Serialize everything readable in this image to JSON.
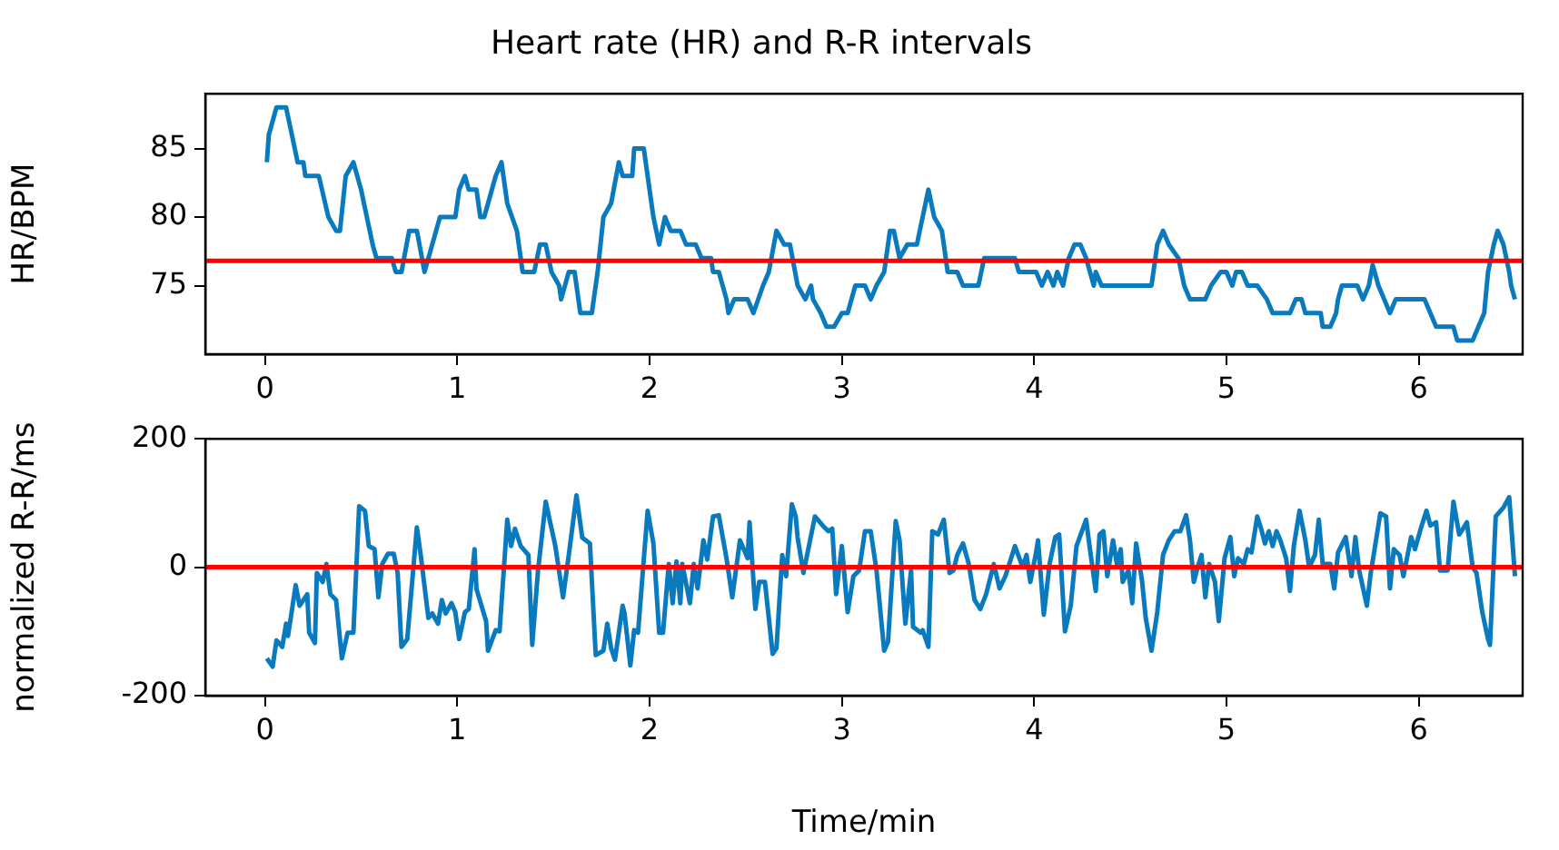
{
  "chart_data": [
    {
      "type": "line",
      "title": "Heart rate (HR) and R-R intervals",
      "ylabel": "HR/BPM",
      "xlim": [
        -0.31,
        6.54
      ],
      "xticks": [
        0,
        1,
        2,
        3,
        4,
        5,
        6
      ],
      "ylim": [
        70,
        89
      ],
      "yticks": [
        75,
        80,
        85
      ],
      "grid": false,
      "legend": false,
      "series": [
        {
          "color": "#0a7abf",
          "x": [
            0.01,
            0.02,
            0.06,
            0.11,
            0.155,
            0.17,
            0.2,
            0.21,
            0.28,
            0.33,
            0.37,
            0.39,
            0.42,
            0.46,
            0.5,
            0.56,
            0.58,
            0.66,
            0.68,
            0.71,
            0.75,
            0.79,
            0.83,
            0.91,
            0.99,
            1.01,
            1.04,
            1.06,
            1.1,
            1.12,
            1.14,
            1.16,
            1.2,
            1.23,
            1.26,
            1.31,
            1.34,
            1.4,
            1.43,
            1.46,
            1.49,
            1.53,
            1.54,
            1.58,
            1.61,
            1.64,
            1.7,
            1.73,
            1.76,
            1.8,
            1.84,
            1.86,
            1.91,
            1.92,
            1.97,
            2.0,
            2.02,
            2.05,
            2.08,
            2.11,
            2.16,
            2.19,
            2.24,
            2.27,
            2.32,
            2.33,
            2.36,
            2.4,
            2.41,
            2.44,
            2.51,
            2.54,
            2.59,
            2.62,
            2.66,
            2.7,
            2.73,
            2.77,
            2.81,
            2.84,
            2.85,
            2.89,
            2.92,
            2.96,
            3.0,
            3.03,
            3.07,
            3.12,
            3.15,
            3.18,
            3.22,
            3.25,
            3.27,
            3.3,
            3.34,
            3.39,
            3.42,
            3.45,
            3.48,
            3.52,
            3.55,
            3.6,
            3.63,
            3.71,
            3.74,
            3.9,
            3.92,
            4.01,
            4.04,
            4.07,
            4.1,
            4.12,
            4.15,
            4.18,
            4.21,
            4.24,
            4.27,
            4.31,
            4.32,
            4.35,
            4.61,
            4.64,
            4.67,
            4.7,
            4.75,
            4.78,
            4.81,
            4.89,
            4.92,
            4.97,
            5.0,
            5.03,
            5.05,
            5.08,
            5.11,
            5.16,
            5.21,
            5.24,
            5.33,
            5.36,
            5.39,
            5.41,
            5.49,
            5.5,
            5.54,
            5.57,
            5.58,
            5.6,
            5.68,
            5.71,
            5.74,
            5.76,
            5.79,
            5.82,
            5.85,
            5.88,
            6.03,
            6.06,
            6.09,
            6.18,
            6.2,
            6.28,
            6.31,
            6.34,
            6.36,
            6.39,
            6.41,
            6.44,
            6.47,
            6.48,
            6.5
          ],
          "values": [
            84,
            86,
            88,
            88,
            85,
            84,
            84,
            83,
            83,
            80,
            79,
            79,
            83,
            84,
            82,
            78,
            77,
            77,
            76,
            76,
            79,
            79,
            76,
            80,
            80,
            82,
            83,
            82,
            82,
            80,
            80,
            81,
            83,
            84,
            81,
            79,
            76,
            76,
            78,
            78,
            76,
            75,
            74,
            76,
            76,
            73,
            73,
            76,
            80,
            81,
            84,
            83,
            83,
            85,
            85,
            82,
            80,
            78,
            80,
            79,
            79,
            78,
            78,
            77,
            77,
            76,
            76,
            74,
            73,
            74,
            74,
            73,
            75,
            76,
            79,
            78,
            78,
            75,
            74,
            75,
            74,
            73,
            72,
            72,
            73,
            73,
            75,
            75,
            74,
            75,
            76,
            79,
            79,
            77,
            78,
            78,
            80,
            82,
            80,
            79,
            76,
            76,
            75,
            75,
            77,
            77,
            76,
            76,
            75,
            76,
            75,
            76,
            75,
            77,
            78,
            78,
            77,
            75,
            76,
            75,
            75,
            78,
            79,
            78,
            77,
            75,
            74,
            74,
            75,
            76,
            76,
            75,
            76,
            76,
            75,
            75,
            74,
            73,
            73,
            74,
            74,
            73,
            73,
            72,
            72,
            73,
            74,
            75,
            75,
            74,
            75,
            76.5,
            75,
            74,
            73,
            74,
            74,
            73,
            72,
            72,
            71,
            71,
            72,
            73,
            76,
            78,
            79,
            78,
            76,
            75,
            74
          ]
        }
      ],
      "ref_lines": [
        {
          "axis": "y",
          "value": 76.8,
          "color": "#ff0000"
        }
      ]
    },
    {
      "type": "line",
      "ylabel": "normalized R-R/ms",
      "xlabel": "Time/min",
      "xlim": [
        -0.31,
        6.54
      ],
      "xticks": [
        0,
        1,
        2,
        3,
        4,
        5,
        6
      ],
      "ylim": [
        -200,
        200
      ],
      "yticks": [
        -200,
        0,
        200
      ],
      "grid": false,
      "legend": false,
      "series": [
        {
          "color": "#0a7abf",
          "x": [
            0.01,
            0.04,
            0.06,
            0.09,
            0.11,
            0.12,
            0.16,
            0.18,
            0.22,
            0.23,
            0.26,
            0.27,
            0.3,
            0.32,
            0.34,
            0.37,
            0.4,
            0.43,
            0.46,
            0.49,
            0.52,
            0.54,
            0.57,
            0.59,
            0.61,
            0.64,
            0.67,
            0.69,
            0.71,
            0.74,
            0.79,
            0.81,
            0.85,
            0.87,
            0.9,
            0.92,
            0.94,
            0.97,
            0.99,
            1.01,
            1.04,
            1.06,
            1.09,
            1.1,
            1.15,
            1.16,
            1.2,
            1.22,
            1.26,
            1.28,
            1.3,
            1.33,
            1.37,
            1.39,
            1.42,
            1.46,
            1.51,
            1.55,
            1.58,
            1.62,
            1.65,
            1.69,
            1.72,
            1.76,
            1.78,
            1.8,
            1.82,
            1.86,
            1.87,
            1.9,
            1.92,
            1.94,
            1.99,
            2.02,
            2.05,
            2.07,
            2.1,
            2.12,
            2.14,
            2.16,
            2.17,
            2.21,
            2.23,
            2.25,
            2.28,
            2.3,
            2.33,
            2.36,
            2.4,
            2.43,
            2.47,
            2.51,
            2.52,
            2.55,
            2.57,
            2.6,
            2.64,
            2.66,
            2.69,
            2.71,
            2.74,
            2.76,
            2.77,
            2.8,
            2.86,
            2.9,
            2.93,
            2.95,
            2.97,
            3.0,
            3.03,
            3.06,
            3.09,
            3.12,
            3.15,
            3.18,
            3.22,
            3.24,
            3.28,
            3.3,
            3.33,
            3.36,
            3.37,
            3.41,
            3.42,
            3.45,
            3.47,
            3.5,
            3.53,
            3.56,
            3.58,
            3.6,
            3.63,
            3.66,
            3.69,
            3.72,
            3.75,
            3.79,
            3.82,
            3.85,
            3.88,
            3.9,
            3.94,
            3.96,
            3.98,
            4.01,
            4.02,
            4.05,
            4.08,
            4.11,
            4.13,
            4.16,
            4.19,
            4.22,
            4.27,
            4.29,
            4.32,
            4.34,
            4.36,
            4.38,
            4.41,
            4.43,
            4.45,
            4.46,
            4.49,
            4.51,
            4.53,
            4.56,
            4.58,
            4.61,
            4.64,
            4.67,
            4.7,
            4.73,
            4.76,
            4.79,
            4.81,
            4.83,
            4.85,
            4.87,
            4.89,
            4.91,
            4.94,
            4.96,
            4.99,
            5.02,
            5.04,
            5.06,
            5.09,
            5.11,
            5.13,
            5.16,
            5.18,
            5.2,
            5.22,
            5.24,
            5.26,
            5.28,
            5.31,
            5.33,
            5.35,
            5.38,
            5.41,
            5.43,
            5.46,
            5.48,
            5.5,
            5.54,
            5.56,
            5.58,
            5.62,
            5.65,
            5.67,
            5.69,
            5.73,
            5.75,
            5.77,
            5.8,
            5.83,
            5.85,
            5.87,
            5.9,
            5.92,
            5.96,
            5.98,
            6.01,
            6.04,
            6.06,
            6.09,
            6.11,
            6.15,
            6.18,
            6.21,
            6.23,
            6.25,
            6.28,
            6.3,
            6.33,
            6.36,
            6.37,
            6.4,
            6.44,
            6.47,
            6.5
          ],
          "values": [
            -142,
            -155,
            -114,
            -124,
            -88,
            -107,
            -28,
            -60,
            -42,
            -102,
            -118,
            -9,
            -23,
            5,
            -42,
            -51,
            -142,
            -102,
            -102,
            95,
            88,
            33,
            28,
            -47,
            5,
            21,
            21,
            -9,
            -124,
            -112,
            62,
            19,
            -79,
            -72,
            -88,
            -51,
            -72,
            -56,
            -70,
            -112,
            -70,
            -65,
            28,
            -34,
            -84,
            -130,
            -98,
            -100,
            74,
            33,
            60,
            33,
            19,
            -121,
            -5,
            102,
            33,
            -47,
            19,
            112,
            46,
            37,
            -137,
            -130,
            -88,
            -126,
            -144,
            -60,
            -72,
            -153,
            -98,
            -102,
            88,
            37,
            -102,
            -102,
            5,
            -56,
            9,
            -56,
            5,
            -56,
            5,
            -33,
            42,
            12,
            79,
            81,
            14,
            -47,
            42,
            14,
            70,
            -65,
            -23,
            -23,
            -135,
            -126,
            19,
            -14,
            98,
            79,
            46,
            -9,
            79,
            65,
            56,
            60,
            -42,
            33,
            -70,
            -14,
            -5,
            56,
            56,
            -5,
            -130,
            -116,
            72,
            42,
            -88,
            -5,
            -93,
            -102,
            -98,
            -124,
            56,
            51,
            74,
            -9,
            -5,
            19,
            37,
            5,
            -51,
            -65,
            -42,
            5,
            -33,
            -14,
            14,
            33,
            0,
            19,
            -23,
            23,
            42,
            -74,
            5,
            47,
            51,
            -100,
            -60,
            33,
            74,
            28,
            -37,
            51,
            56,
            -14,
            42,
            5,
            28,
            -23,
            -5,
            -56,
            37,
            -19,
            -79,
            -130,
            -70,
            19,
            42,
            56,
            56,
            81,
            42,
            -23,
            0,
            19,
            -47,
            5,
            -23,
            -84,
            14,
            47,
            -14,
            14,
            5,
            28,
            23,
            79,
            60,
            37,
            56,
            33,
            56,
            42,
            14,
            -37,
            33,
            88,
            42,
            0,
            19,
            74,
            5,
            5,
            -33,
            23,
            47,
            -14,
            47,
            -5,
            -60,
            -9,
            28,
            84,
            79,
            -33,
            28,
            19,
            -14,
            47,
            28,
            60,
            88,
            65,
            70,
            -5,
            -5,
            102,
            51,
            60,
            70,
            0,
            -9,
            -70,
            -112,
            -121,
            79,
            93,
            109,
            -14
          ]
        }
      ],
      "ref_lines": [
        {
          "axis": "y",
          "value": 0,
          "color": "#ff0000"
        }
      ]
    }
  ]
}
